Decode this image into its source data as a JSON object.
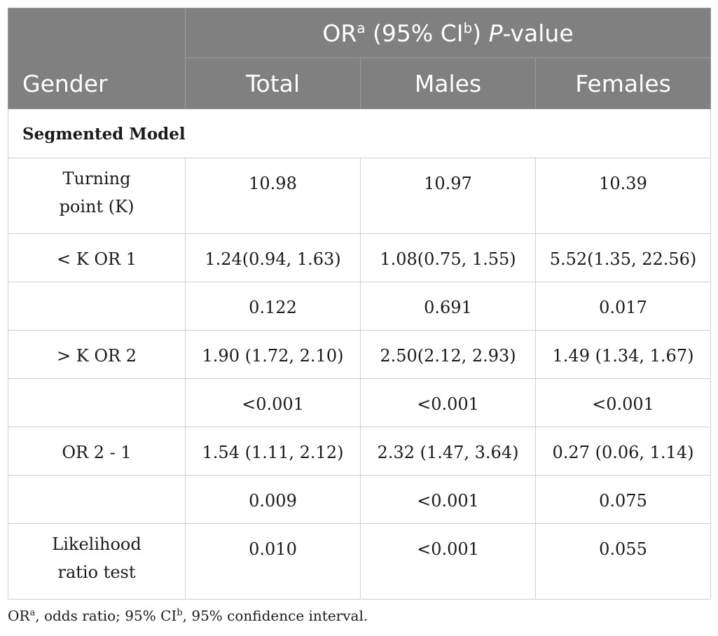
{
  "header": {
    "gender_label": "Gender",
    "group": {
      "or": "OR",
      "or_sup": "a",
      "ci_open": " (95% CI",
      "ci_sup": "b",
      "ci_close": ") ",
      "p": "P",
      "value": "-value"
    },
    "columns": [
      "Total",
      "Males",
      "Females"
    ]
  },
  "section_label": "Segmented Model",
  "rows": [
    {
      "label": "Turning point (K)",
      "total": "10.98",
      "males": "10.97",
      "females": "10.39"
    },
    {
      "label": "< K OR 1",
      "total": "1.24(0.94, 1.63)",
      "males": "1.08(0.75, 1.55)",
      "females": "5.52(1.35, 22.56)"
    },
    {
      "label": "",
      "total": "0.122",
      "males": "0.691",
      "females": "0.017"
    },
    {
      "label": "> K OR 2",
      "total": "1.90 (1.72, 2.10)",
      "males": "2.50(2.12, 2.93)",
      "females": "1.49 (1.34, 1.67)"
    },
    {
      "label": "",
      "total": "<0.001",
      "males": "<0.001",
      "females": "<0.001"
    },
    {
      "label": "OR 2 - 1",
      "total": "1.54 (1.11, 2.12)",
      "males": "2.32 (1.47, 3.64)",
      "females": "0.27 (0.06, 1.14)"
    },
    {
      "label": "",
      "total": "0.009",
      "males": "<0.001",
      "females": "0.075"
    },
    {
      "label": "Likelihood ratio test",
      "total": "0.010",
      "males": "<0.001",
      "females": "0.055"
    }
  ],
  "footnote": {
    "or": "OR",
    "or_sup": "a",
    "or_text": ", odds ratio; 95% CI",
    "ci_sup": "b",
    "ci_text": ", 95% confidence interval."
  }
}
